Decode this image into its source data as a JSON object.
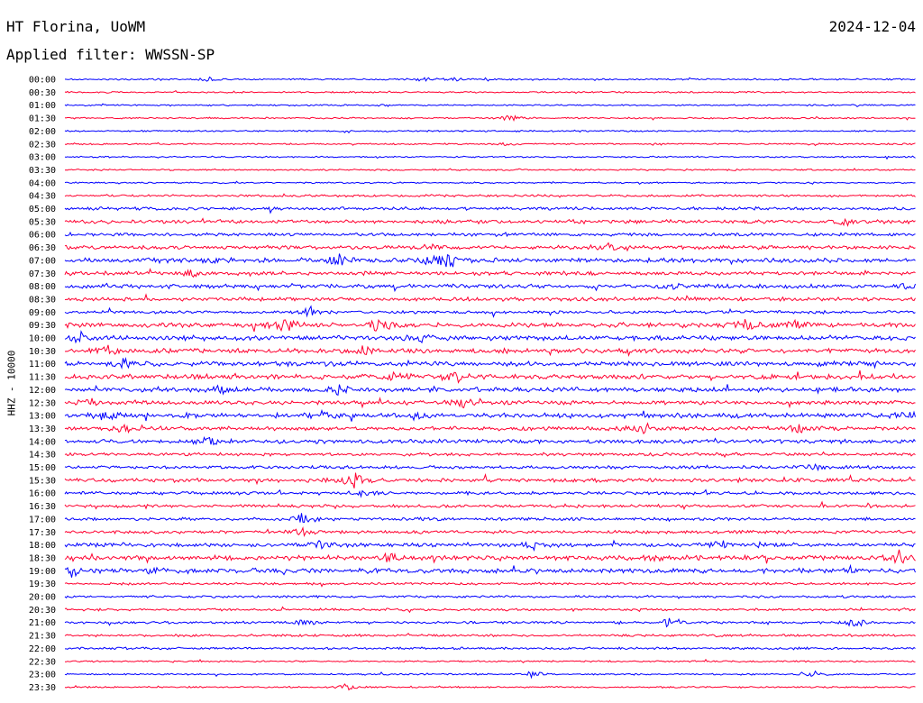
{
  "header": {
    "station": "HT Florina, UoWM",
    "date": "2024-12-04",
    "filter": "Applied filter: WWSSN-SP"
  },
  "chart_data": {
    "type": "line",
    "subtype": "helicorder",
    "channel_label": "HHZ - 10000",
    "row_colors": [
      "#0000ff",
      "#ff0030"
    ],
    "row_labels": [
      "00:00",
      "00:30",
      "01:00",
      "01:30",
      "02:00",
      "02:30",
      "03:00",
      "03:30",
      "04:00",
      "04:30",
      "05:00",
      "05:30",
      "06:00",
      "06:30",
      "07:00",
      "07:30",
      "08:00",
      "08:30",
      "09:00",
      "09:30",
      "10:00",
      "10:30",
      "11:00",
      "11:30",
      "12:00",
      "12:30",
      "13:00",
      "13:30",
      "14:00",
      "14:30",
      "15:00",
      "15:30",
      "16:00",
      "16:30",
      "17:00",
      "17:30",
      "18:00",
      "18:30",
      "19:00",
      "19:30",
      "20:00",
      "20:30",
      "21:00",
      "21:30",
      "22:00",
      "22:30",
      "23:00",
      "23:30"
    ],
    "noise_level": [
      1,
      1,
      1,
      1,
      1,
      1,
      1,
      1,
      1,
      1.5,
      2,
      2.5,
      2,
      2.5,
      3,
      2.5,
      2.5,
      2.5,
      2,
      3,
      3,
      3,
      3,
      3,
      3,
      2.5,
      3,
      2.5,
      2.5,
      2,
      2,
      2.5,
      2,
      2,
      2,
      2,
      2.5,
      3,
      3,
      1.5,
      1.5,
      1.5,
      1.5,
      1.5,
      1.5,
      1,
      1,
      1
    ],
    "events": [
      {
        "row": 0,
        "x": 0.17,
        "a": 3
      },
      {
        "row": 0,
        "x": 0.42,
        "a": 3
      },
      {
        "row": 0,
        "x": 0.46,
        "a": 2
      },
      {
        "row": 3,
        "x": 0.52,
        "a": 3
      },
      {
        "row": 3,
        "x": 0.53,
        "a": 2
      },
      {
        "row": 5,
        "x": 0.52,
        "a": 2
      },
      {
        "row": 11,
        "x": 0.92,
        "a": 6
      },
      {
        "row": 13,
        "x": 0.64,
        "a": 5
      },
      {
        "row": 13,
        "x": 0.43,
        "a": 3
      },
      {
        "row": 14,
        "x": 0.17,
        "a": 6
      },
      {
        "row": 14,
        "x": 0.32,
        "a": 10
      },
      {
        "row": 14,
        "x": 0.43,
        "a": 6
      },
      {
        "row": 14,
        "x": 0.45,
        "a": 9
      },
      {
        "row": 15,
        "x": 0.15,
        "a": 5
      },
      {
        "row": 16,
        "x": 0.72,
        "a": 7
      },
      {
        "row": 16,
        "x": 0.99,
        "a": 4
      },
      {
        "row": 18,
        "x": 0.29,
        "a": 8
      },
      {
        "row": 19,
        "x": 0.26,
        "a": 10
      },
      {
        "row": 19,
        "x": 0.37,
        "a": 12
      },
      {
        "row": 19,
        "x": 0.8,
        "a": 8
      },
      {
        "row": 19,
        "x": 0.86,
        "a": 7
      },
      {
        "row": 20,
        "x": 0.02,
        "a": 7
      },
      {
        "row": 20,
        "x": 0.42,
        "a": 6
      },
      {
        "row": 21,
        "x": 0.05,
        "a": 6
      },
      {
        "row": 21,
        "x": 0.35,
        "a": 8
      },
      {
        "row": 22,
        "x": 0.07,
        "a": 7
      },
      {
        "row": 23,
        "x": 0.39,
        "a": 6
      },
      {
        "row": 23,
        "x": 0.46,
        "a": 6
      },
      {
        "row": 24,
        "x": 0.32,
        "a": 7
      },
      {
        "row": 24,
        "x": 0.18,
        "a": 5
      },
      {
        "row": 25,
        "x": 0.03,
        "a": 5
      },
      {
        "row": 25,
        "x": 0.47,
        "a": 6
      },
      {
        "row": 26,
        "x": 0.05,
        "a": 6
      },
      {
        "row": 26,
        "x": 0.3,
        "a": 5
      },
      {
        "row": 26,
        "x": 0.41,
        "a": 5
      },
      {
        "row": 26,
        "x": 0.99,
        "a": 5
      },
      {
        "row": 27,
        "x": 0.07,
        "a": 6
      },
      {
        "row": 27,
        "x": 0.68,
        "a": 6
      },
      {
        "row": 27,
        "x": 0.86,
        "a": 6
      },
      {
        "row": 28,
        "x": 0.17,
        "a": 5
      },
      {
        "row": 30,
        "x": 0.88,
        "a": 6
      },
      {
        "row": 31,
        "x": 0.34,
        "a": 11
      },
      {
        "row": 32,
        "x": 0.35,
        "a": 5
      },
      {
        "row": 34,
        "x": 0.28,
        "a": 9
      },
      {
        "row": 35,
        "x": 0.28,
        "a": 5
      },
      {
        "row": 36,
        "x": 0.3,
        "a": 6
      },
      {
        "row": 36,
        "x": 0.55,
        "a": 5
      },
      {
        "row": 36,
        "x": 0.77,
        "a": 6
      },
      {
        "row": 37,
        "x": 0.38,
        "a": 5
      },
      {
        "row": 37,
        "x": 0.69,
        "a": 5
      },
      {
        "row": 37,
        "x": 0.98,
        "a": 8
      },
      {
        "row": 38,
        "x": 0.01,
        "a": 8
      },
      {
        "row": 38,
        "x": 0.11,
        "a": 5
      },
      {
        "row": 42,
        "x": 0.28,
        "a": 4
      },
      {
        "row": 42,
        "x": 0.71,
        "a": 6
      },
      {
        "row": 42,
        "x": 0.93,
        "a": 6
      },
      {
        "row": 46,
        "x": 0.55,
        "a": 4
      },
      {
        "row": 46,
        "x": 0.88,
        "a": 4
      },
      {
        "row": 47,
        "x": 0.33,
        "a": 4
      }
    ]
  }
}
